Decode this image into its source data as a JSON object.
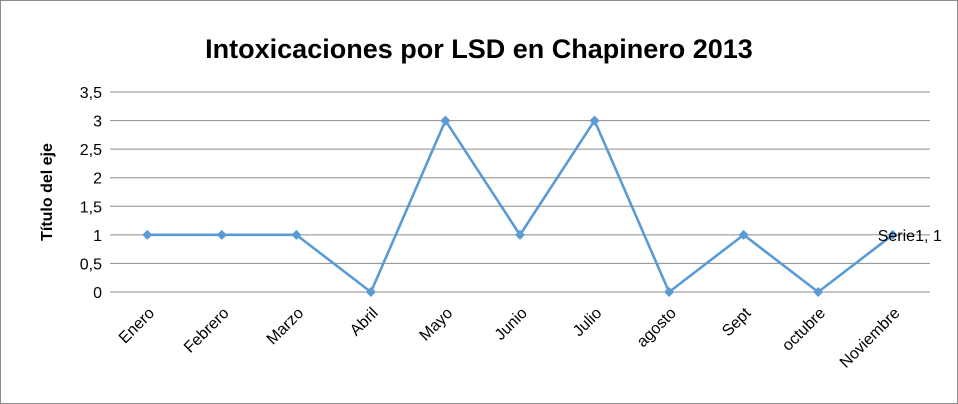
{
  "chart_data": {
    "type": "line",
    "title": "Intoxicaciones por LSD en Chapinero 2013",
    "xlabel": "",
    "ylabel": "Título del eje",
    "categories": [
      "Enero",
      "Febrero",
      "Marzo",
      "Abril",
      "Mayo",
      "Junio",
      "Julio",
      "agosto",
      "Sept",
      "octubre",
      "Noviembre"
    ],
    "series": [
      {
        "name": "Serie1",
        "values": [
          1,
          1,
          1,
          0,
          3,
          1,
          3,
          0,
          1,
          0,
          1
        ],
        "color": "#5b9bd5",
        "marker": "diamond"
      }
    ],
    "ylim": [
      0,
      3.5
    ],
    "yticks": [
      "0",
      "0,5",
      "1",
      "1,5",
      "2",
      "2,5",
      "3",
      "3,5"
    ],
    "grid": true,
    "legend": "none",
    "data_labels": [
      {
        "category": "Noviembre",
        "text": "Serie1, 1"
      }
    ]
  }
}
